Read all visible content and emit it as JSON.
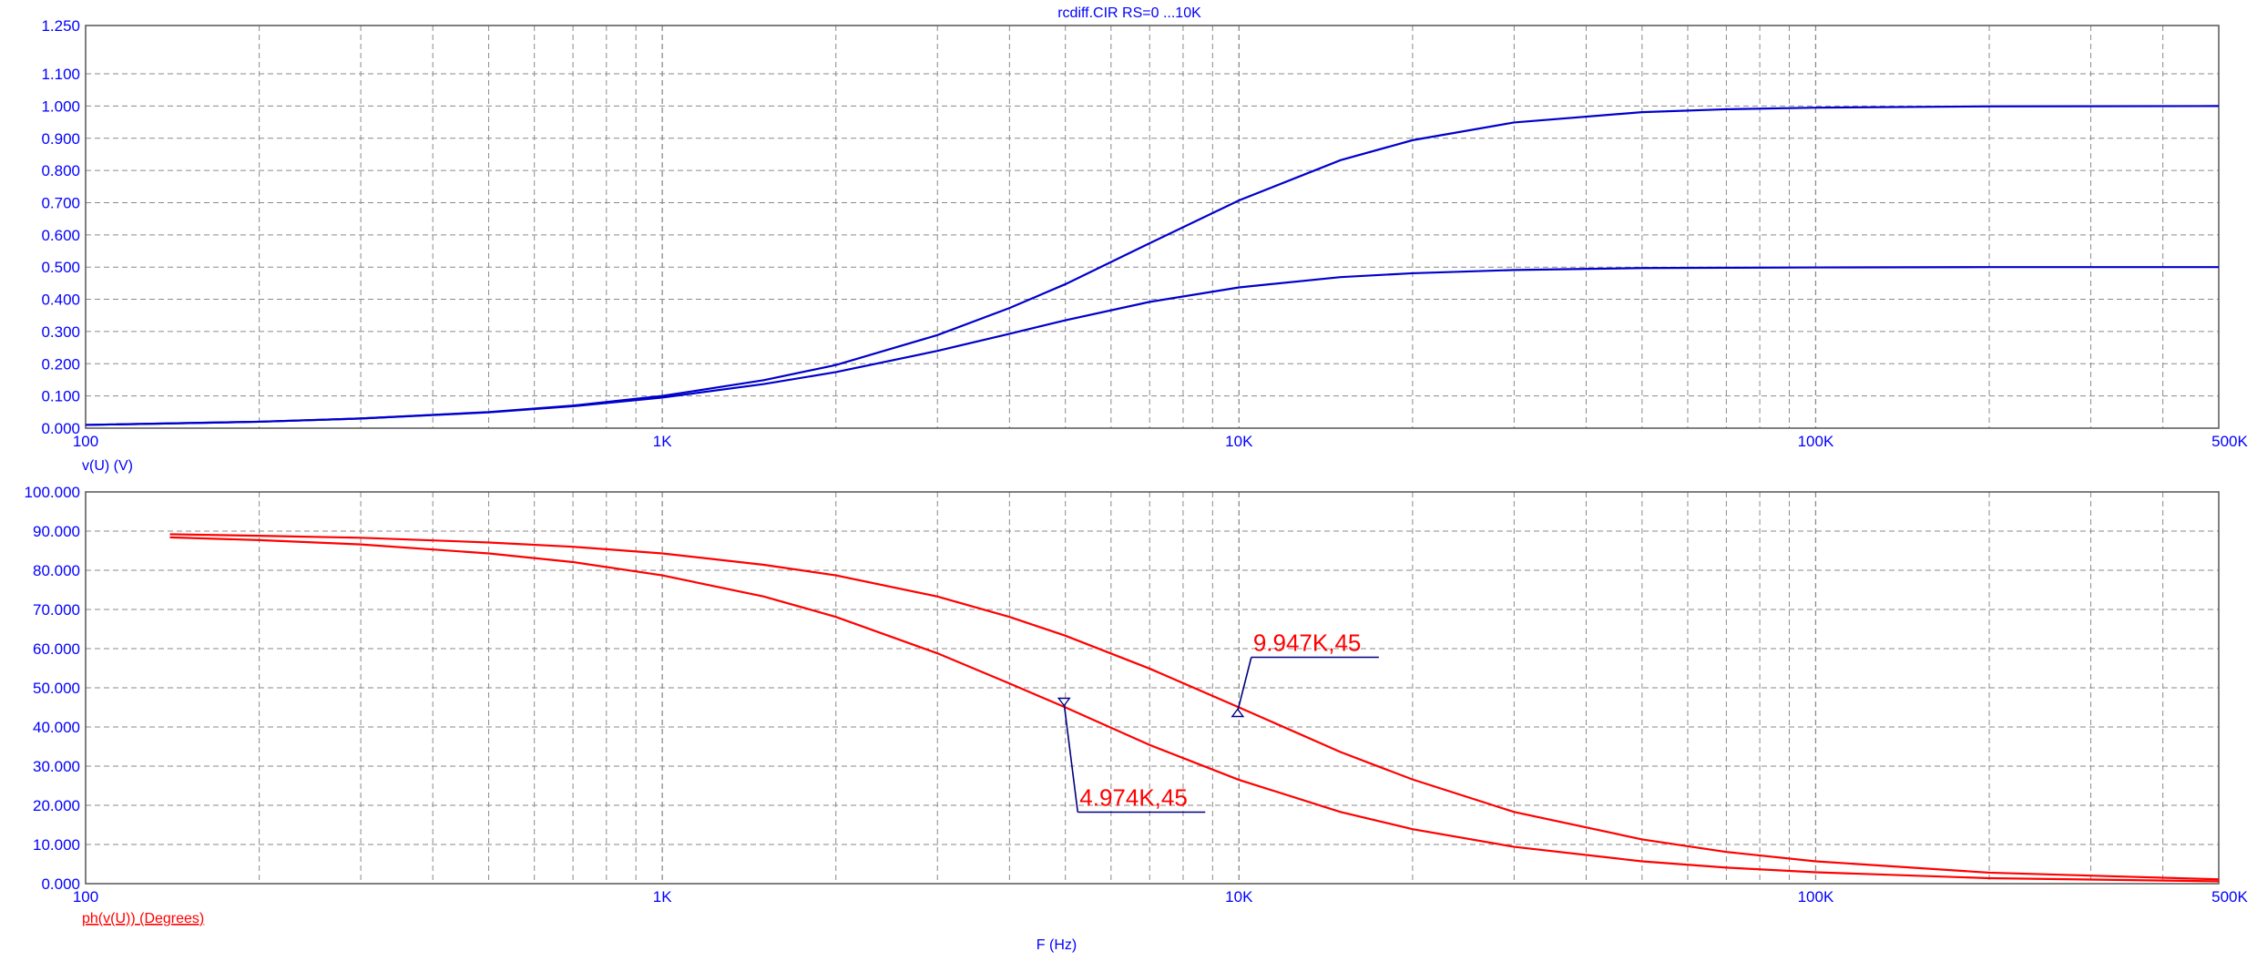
{
  "chart_data": [
    {
      "type": "line",
      "title": "rcdiff.CIR RS=0 ...10K",
      "xlabel": "",
      "ylabel": "v(U) (V)",
      "x_scale": "log",
      "xlim": [
        100,
        500000
      ],
      "ylim": [
        0,
        1.25
      ],
      "x_ticks": [
        100,
        1000,
        10000,
        100000,
        500000
      ],
      "x_tick_labels": [
        "100",
        "1K",
        "10K",
        "100K",
        "500K"
      ],
      "y_ticks": [
        0,
        0.1,
        0.2,
        0.3,
        0.4,
        0.5,
        0.6,
        0.7,
        0.8,
        0.9,
        1.0,
        1.1,
        1.25
      ],
      "y_tick_labels": [
        "0.000",
        "0.100",
        "0.200",
        "0.300",
        "0.400",
        "0.500",
        "0.600",
        "0.700",
        "0.800",
        "0.900",
        "1.000",
        "1.100",
        "1.250"
      ],
      "grid": true,
      "series_color": "#0000cc",
      "series": [
        {
          "x": [
            100,
            200,
            300,
            500,
            700,
            1000,
            1500,
            2000,
            3000,
            4000,
            5000,
            7000,
            10000,
            15000,
            20000,
            30000,
            50000,
            70000,
            100000,
            200000,
            500000
          ],
          "y": [
            0.01,
            0.02,
            0.03,
            0.05,
            0.07,
            0.1,
            0.149,
            0.196,
            0.289,
            0.373,
            0.447,
            0.574,
            0.707,
            0.832,
            0.894,
            0.949,
            0.981,
            0.99,
            0.995,
            0.999,
            1.0
          ]
        },
        {
          "x": [
            100,
            200,
            300,
            500,
            700,
            1000,
            1500,
            2000,
            3000,
            4000,
            5000,
            7000,
            10000,
            15000,
            20000,
            30000,
            50000,
            70000,
            100000,
            200000,
            500000
          ],
          "y": [
            0.01,
            0.02,
            0.03,
            0.049,
            0.068,
            0.095,
            0.137,
            0.174,
            0.24,
            0.293,
            0.335,
            0.392,
            0.437,
            0.469,
            0.481,
            0.491,
            0.497,
            0.498,
            0.499,
            0.5,
            0.5
          ]
        }
      ]
    },
    {
      "type": "line",
      "title": "",
      "xlabel": "F (Hz)",
      "ylabel": "ph(v(U)) (Degrees)",
      "x_scale": "log",
      "xlim": [
        100,
        500000
      ],
      "ylim": [
        0,
        100
      ],
      "x_ticks": [
        100,
        1000,
        10000,
        100000,
        500000
      ],
      "x_tick_labels": [
        "100",
        "1K",
        "10K",
        "100K",
        "500K"
      ],
      "y_ticks": [
        0,
        10,
        20,
        30,
        40,
        50,
        60,
        70,
        80,
        90,
        100
      ],
      "y_tick_labels": [
        "0.000",
        "10.000",
        "20.000",
        "30.000",
        "40.000",
        "50.000",
        "60.000",
        "70.000",
        "80.000",
        "90.000",
        "100.000"
      ],
      "grid": true,
      "series_color": "#ff0000",
      "series": [
        {
          "x": [
            140,
            200,
            300,
            500,
            700,
            1000,
            1500,
            2000,
            3000,
            4000,
            5000,
            7000,
            10000,
            15000,
            20000,
            30000,
            50000,
            70000,
            100000,
            200000,
            500000
          ],
          "y": [
            89.2,
            88.8,
            88.3,
            87.1,
            86.0,
            84.3,
            81.4,
            78.7,
            73.3,
            68.1,
            63.3,
            54.9,
            45.0,
            33.6,
            26.6,
            18.3,
            11.3,
            8.1,
            5.7,
            2.8,
            1.1
          ]
        },
        {
          "x": [
            140,
            200,
            300,
            500,
            700,
            1000,
            1500,
            2000,
            3000,
            4000,
            5000,
            7000,
            10000,
            15000,
            20000,
            30000,
            50000,
            70000,
            100000,
            200000,
            500000
          ],
          "y": [
            88.4,
            87.7,
            86.6,
            84.3,
            82.1,
            78.7,
            73.3,
            68.1,
            58.8,
            51.1,
            45.0,
            35.4,
            26.5,
            18.3,
            13.9,
            9.4,
            5.7,
            4.1,
            2.9,
            1.4,
            0.6
          ]
        }
      ],
      "annotations": [
        {
          "text": "9.947K,45",
          "x": 9947,
          "y": 45
        },
        {
          "text": "4.974K,45",
          "x": 4974,
          "y": 45
        }
      ]
    }
  ]
}
